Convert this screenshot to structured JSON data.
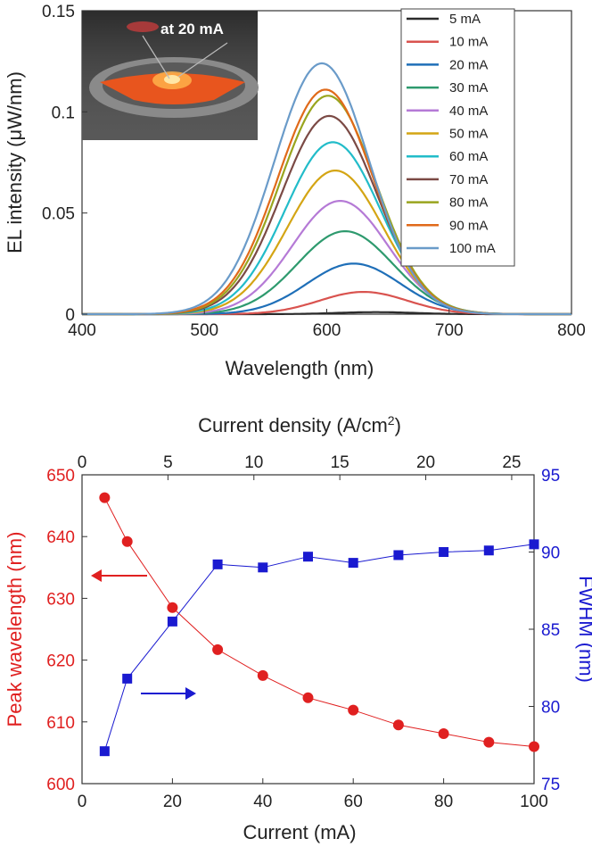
{
  "chart_data": [
    {
      "type": "line",
      "xlabel": "Wavelength (nm)",
      "ylabel": "EL intensity (μW/nm)",
      "xlim": [
        400,
        800
      ],
      "ylim": [
        0,
        0.15
      ],
      "x_ticks": [
        "400",
        "500",
        "600",
        "700",
        "800"
      ],
      "y_ticks": [
        "0",
        "0.05",
        "0.1",
        "0.15"
      ],
      "legend_position": "top-right",
      "inset_photo": {
        "caption": "at 20 mA",
        "description": "orange-red emitting device under probe"
      },
      "series": [
        {
          "name": "5 mA",
          "color": "#2b2b2b",
          "peak_nm": 640,
          "peak": 0.001,
          "sigma": 32
        },
        {
          "name": "10 mA",
          "color": "#d9534f",
          "peak_nm": 630,
          "peak": 0.011,
          "sigma": 36
        },
        {
          "name": "20 mA",
          "color": "#1f6fb8",
          "peak_nm": 622,
          "peak": 0.025,
          "sigma": 38
        },
        {
          "name": "30 mA",
          "color": "#2e9a6e",
          "peak_nm": 615,
          "peak": 0.041,
          "sigma": 39
        },
        {
          "name": "40 mA",
          "color": "#b57ad6",
          "peak_nm": 611,
          "peak": 0.056,
          "sigma": 39
        },
        {
          "name": "50 mA",
          "color": "#d4a514",
          "peak_nm": 607,
          "peak": 0.071,
          "sigma": 39
        },
        {
          "name": "60 mA",
          "color": "#22bcc9",
          "peak_nm": 605,
          "peak": 0.085,
          "sigma": 39
        },
        {
          "name": "70 mA",
          "color": "#7b4a45",
          "peak_nm": 602,
          "peak": 0.098,
          "sigma": 39
        },
        {
          "name": "80 mA",
          "color": "#99a51e",
          "peak_nm": 601,
          "peak": 0.108,
          "sigma": 39
        },
        {
          "name": "90 mA",
          "color": "#e06a1a",
          "peak_nm": 599,
          "peak": 0.111,
          "sigma": 39
        },
        {
          "name": "100 mA",
          "color": "#6a9bc9",
          "peak_nm": 596,
          "peak": 0.124,
          "sigma": 39
        }
      ]
    },
    {
      "type": "scatter",
      "xlabel": "Current (mA)",
      "x2label": "Current density (A/cm",
      "x2label_sup": "2",
      "x2label_end": ")",
      "ylabel": "Peak wavelength (nm)",
      "y2label": "FWHM (nm)",
      "xlim": [
        0,
        100
      ],
      "ylim": [
        600,
        650
      ],
      "y2lim": [
        75,
        95
      ],
      "x2lim": [
        0,
        26.3
      ],
      "x_ticks": [
        "0",
        "20",
        "40",
        "60",
        "80",
        "100"
      ],
      "x2_ticks": [
        "0",
        "5",
        "10",
        "15",
        "20",
        "25"
      ],
      "y_ticks": [
        "600",
        "610",
        "620",
        "630",
        "640",
        "650"
      ],
      "y2_ticks": [
        "75",
        "80",
        "85",
        "90",
        "95"
      ],
      "series": [
        {
          "name": "Peak wavelength (nm)",
          "color": "#e02020",
          "axis": "left",
          "marker": "circle",
          "x": [
            5,
            10,
            20,
            30,
            40,
            50,
            60,
            70,
            80,
            90,
            100
          ],
          "y": [
            646.3,
            639.2,
            628.5,
            621.7,
            617.5,
            613.9,
            611.9,
            609.5,
            608.1,
            606.7,
            606.0
          ]
        },
        {
          "name": "FWHM (nm)",
          "color": "#1a1ad0",
          "axis": "right",
          "marker": "square",
          "x": [
            5,
            10,
            20,
            30,
            40,
            50,
            60,
            70,
            80,
            90,
            100
          ],
          "y": [
            77.1,
            81.8,
            85.5,
            89.2,
            89.0,
            89.7,
            89.3,
            89.8,
            90.0,
            90.1,
            90.5
          ]
        }
      ]
    }
  ]
}
